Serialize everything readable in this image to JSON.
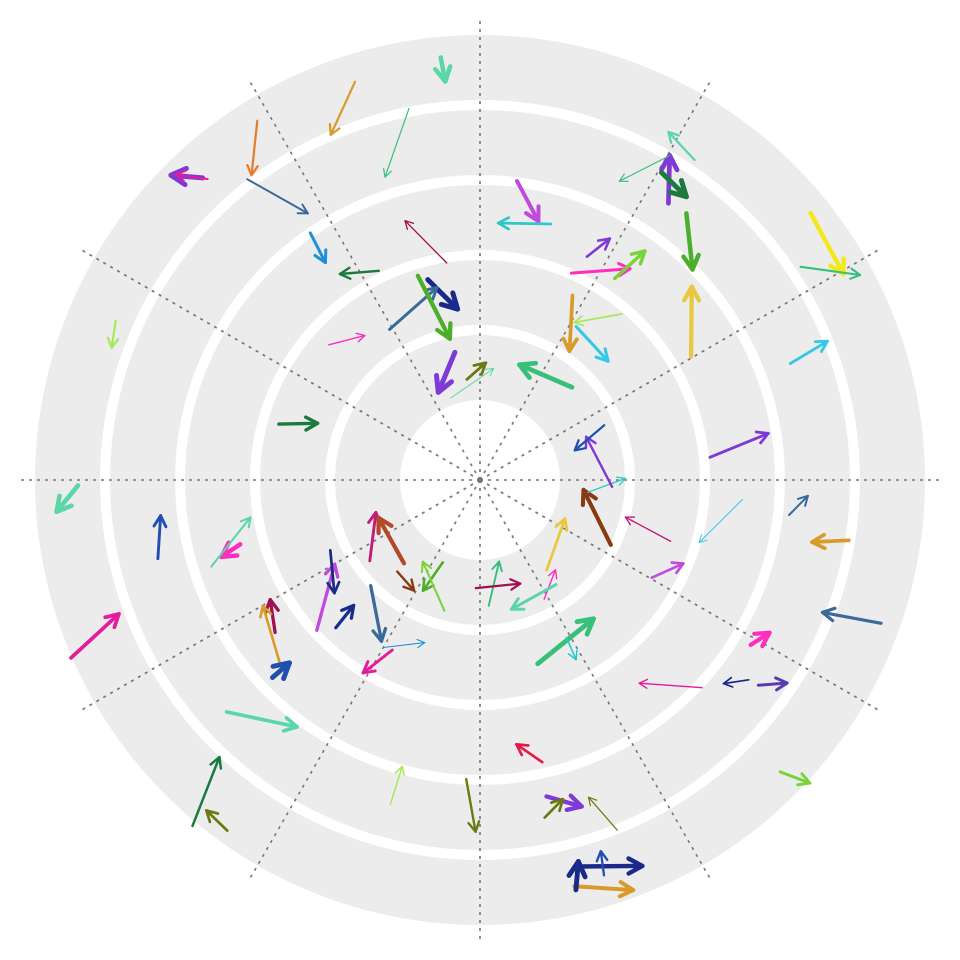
{
  "colors": {
    "background": "#ffffff",
    "band_fill": "#ececec",
    "axis": "#777777"
  },
  "diagram": {
    "type": "spiral-arrow-field",
    "band_count": 5,
    "radial_guides": 12,
    "arrow_count": 92,
    "palette": [
      "#e6194b",
      "#e61a9c",
      "#ff2dc0",
      "#c41a7a",
      "#a01050",
      "#1a7a40",
      "#2a8a1a",
      "#4caf2a",
      "#7ad33a",
      "#a8e85a",
      "#38c07a",
      "#5ad6a8",
      "#2ec8c8",
      "#36c8e8",
      "#1f8fd6",
      "#1f4fb0",
      "#1a2a8a",
      "#5a3ab0",
      "#7e3ad6",
      "#9a4ae0",
      "#c04ae0",
      "#e87a2a",
      "#d89a2a",
      "#e8c840",
      "#f2e81a",
      "#b04a2a",
      "#6a7a10",
      "#8a3a10",
      "#3a6a9a"
    ]
  }
}
